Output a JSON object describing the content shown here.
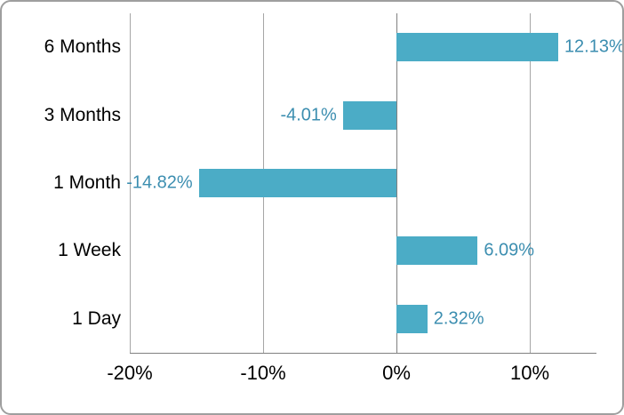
{
  "chart_data": {
    "type": "bar",
    "orientation": "horizontal",
    "title": "",
    "categories": [
      "6 Months",
      "3 Months",
      "1 Month",
      "1 Week",
      "1 Day"
    ],
    "values": [
      12.13,
      -4.01,
      -14.82,
      6.09,
      2.32
    ],
    "data_labels": [
      "12.13%",
      "-4.01%",
      "-14.82%",
      "6.09%",
      "2.32%"
    ],
    "x_ticks": [
      {
        "value": -20,
        "label": "-20%"
      },
      {
        "value": -10,
        "label": "-10%"
      },
      {
        "value": 0,
        "label": "0%"
      },
      {
        "value": 10,
        "label": "10%"
      }
    ],
    "xlim": [
      -20,
      15
    ],
    "grid": true,
    "legend": false,
    "colors": {
      "bar": "#4BACC6",
      "data_label": "#3C8EB0",
      "gridline": "#A6A6A6",
      "axis_line": "#808080",
      "tick_text": "#000000",
      "category_text": "#000000",
      "frame_border": "#9E9E9E",
      "background": "#FFFFFF"
    }
  }
}
